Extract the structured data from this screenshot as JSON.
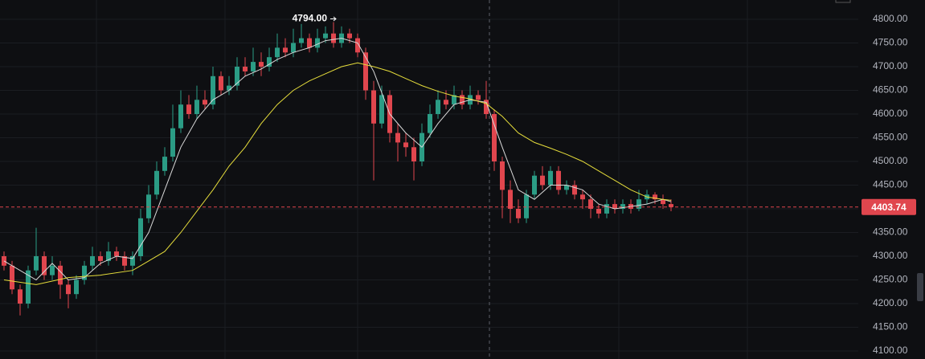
{
  "chart_data": {
    "type": "candlestick",
    "colors": {
      "up": "#2b9c85",
      "down": "#e0464e"
    },
    "ylim": [
      4100,
      4800
    ],
    "yticks": [
      {
        "value": 4100,
        "label": "4100.00"
      },
      {
        "value": 4150,
        "label": "4150.00"
      },
      {
        "value": 4200,
        "label": "4200.00"
      },
      {
        "value": 4250,
        "label": "4250.00"
      },
      {
        "value": 4300,
        "label": "4300.00"
      },
      {
        "value": 4350,
        "label": "4350.00"
      },
      {
        "value": 4400,
        "label": "4400.00"
      },
      {
        "value": 4450,
        "label": "4450.00"
      },
      {
        "value": 4500,
        "label": "4500.00"
      },
      {
        "value": 4550,
        "label": "4550.00"
      },
      {
        "value": 4600,
        "label": "4600.00"
      },
      {
        "value": 4650,
        "label": "4650.00"
      },
      {
        "value": 4700,
        "label": "4700.00"
      },
      {
        "value": 4750,
        "label": "4750.00"
      },
      {
        "value": 4800,
        "label": "4800.00"
      }
    ],
    "grid": true,
    "candles": [
      [
        4300,
        4310,
        4270,
        4280
      ],
      [
        4280,
        4290,
        4220,
        4230
      ],
      [
        4230,
        4240,
        4175,
        4200
      ],
      [
        4200,
        4280,
        4190,
        4270
      ],
      [
        4270,
        4360,
        4260,
        4300
      ],
      [
        4300,
        4310,
        4250,
        4260
      ],
      [
        4260,
        4300,
        4250,
        4280
      ],
      [
        4280,
        4290,
        4210,
        4240
      ],
      [
        4240,
        4250,
        4190,
        4220
      ],
      [
        4220,
        4260,
        4210,
        4250
      ],
      [
        4250,
        4290,
        4240,
        4280
      ],
      [
        4280,
        4320,
        4270,
        4300
      ],
      [
        4300,
        4310,
        4280,
        4290
      ],
      [
        4290,
        4330,
        4280,
        4310
      ],
      [
        4310,
        4320,
        4290,
        4300
      ],
      [
        4300,
        4310,
        4270,
        4280
      ],
      [
        4280,
        4310,
        4260,
        4300
      ],
      [
        4300,
        4400,
        4290,
        4380
      ],
      [
        4380,
        4450,
        4370,
        4430
      ],
      [
        4430,
        4500,
        4420,
        4480
      ],
      [
        4480,
        4530,
        4470,
        4510
      ],
      [
        4510,
        4620,
        4500,
        4570
      ],
      [
        4570,
        4650,
        4560,
        4620
      ],
      [
        4620,
        4640,
        4590,
        4600
      ],
      [
        4600,
        4660,
        4590,
        4630
      ],
      [
        4630,
        4650,
        4610,
        4620
      ],
      [
        4620,
        4700,
        4610,
        4680
      ],
      [
        4680,
        4690,
        4640,
        4650
      ],
      [
        4650,
        4680,
        4640,
        4660
      ],
      [
        4660,
        4720,
        4650,
        4700
      ],
      [
        4700,
        4720,
        4680,
        4690
      ],
      [
        4690,
        4740,
        4680,
        4710
      ],
      [
        4710,
        4730,
        4680,
        4700
      ],
      [
        4700,
        4740,
        4690,
        4720
      ],
      [
        4720,
        4770,
        4710,
        4740
      ],
      [
        4740,
        4760,
        4720,
        4730
      ],
      [
        4730,
        4780,
        4720,
        4750
      ],
      [
        4750,
        4790,
        4740,
        4760
      ],
      [
        4760,
        4770,
        4730,
        4740
      ],
      [
        4740,
        4780,
        4730,
        4760
      ],
      [
        4760,
        4785,
        4750,
        4770
      ],
      [
        4770,
        4794,
        4740,
        4750
      ],
      [
        4750,
        4785,
        4740,
        4770
      ],
      [
        4770,
        4780,
        4750,
        4760
      ],
      [
        4760,
        4770,
        4720,
        4730
      ],
      [
        4730,
        4740,
        4630,
        4650
      ],
      [
        4650,
        4670,
        4460,
        4580
      ],
      [
        4580,
        4660,
        4570,
        4640
      ],
      [
        4640,
        4650,
        4540,
        4560
      ],
      [
        4560,
        4580,
        4500,
        4540
      ],
      [
        4540,
        4560,
        4510,
        4530
      ],
      [
        4530,
        4550,
        4460,
        4500
      ],
      [
        4500,
        4580,
        4490,
        4560
      ],
      [
        4560,
        4620,
        4550,
        4600
      ],
      [
        4600,
        4650,
        4590,
        4630
      ],
      [
        4630,
        4650,
        4610,
        4620
      ],
      [
        4620,
        4660,
        4610,
        4640
      ],
      [
        4640,
        4650,
        4610,
        4620
      ],
      [
        4620,
        4660,
        4610,
        4640
      ],
      [
        4640,
        4650,
        4620,
        4630
      ],
      [
        4630,
        4670,
        4590,
        4600
      ],
      [
        4600,
        4610,
        4480,
        4500
      ],
      [
        4500,
        4510,
        4380,
        4440
      ],
      [
        4440,
        4460,
        4370,
        4400
      ],
      [
        4400,
        4420,
        4370,
        4380
      ],
      [
        4380,
        4440,
        4370,
        4430
      ],
      [
        4430,
        4480,
        4420,
        4470
      ],
      [
        4470,
        4490,
        4440,
        4450
      ],
      [
        4450,
        4490,
        4440,
        4480
      ],
      [
        4480,
        4490,
        4430,
        4440
      ],
      [
        4440,
        4460,
        4430,
        4450
      ],
      [
        4450,
        4460,
        4420,
        4430
      ],
      [
        4430,
        4440,
        4400,
        4420
      ],
      [
        4420,
        4430,
        4380,
        4400
      ],
      [
        4400,
        4410,
        4380,
        4390
      ],
      [
        4390,
        4420,
        4380,
        4410
      ],
      [
        4410,
        4420,
        4390,
        4400
      ],
      [
        4400,
        4420,
        4390,
        4410
      ],
      [
        4410,
        4420,
        4390,
        4400
      ],
      [
        4400,
        4440,
        4395,
        4420
      ],
      [
        4420,
        4440,
        4410,
        4430
      ],
      [
        4430,
        4435,
        4410,
        4420
      ],
      [
        4420,
        4430,
        4400,
        4410
      ],
      [
        4410,
        4420,
        4395,
        4403.74
      ]
    ],
    "lines": [
      {
        "color": "#d9d9d9",
        "x": [
          0,
          4,
          6,
          8,
          10,
          12,
          14,
          16,
          18,
          20,
          22,
          24,
          26,
          28,
          30,
          32,
          34,
          36,
          38,
          40,
          42,
          44,
          46,
          48,
          50,
          52,
          54,
          56,
          58,
          60,
          62,
          64,
          66,
          68,
          70,
          72,
          74,
          76,
          78,
          80,
          82,
          83
        ],
        "values": [
          4290,
          4250,
          4285,
          4250,
          4255,
          4285,
          4300,
          4295,
          4350,
          4440,
          4530,
          4590,
          4630,
          4650,
          4680,
          4695,
          4715,
          4730,
          4740,
          4755,
          4760,
          4750,
          4690,
          4600,
          4560,
          4530,
          4580,
          4620,
          4630,
          4625,
          4530,
          4440,
          4420,
          4450,
          4450,
          4440,
          4410,
          4400,
          4405,
          4410,
          4420,
          4415
        ]
      },
      {
        "color": "#e6dd3b",
        "x": [
          0,
          4,
          8,
          12,
          16,
          18,
          20,
          22,
          24,
          26,
          28,
          30,
          32,
          34,
          36,
          38,
          40,
          42,
          44,
          46,
          48,
          50,
          52,
          54,
          56,
          58,
          60,
          62,
          64,
          66,
          68,
          70,
          72,
          74,
          76,
          78,
          80,
          82,
          83
        ],
        "values": [
          4250,
          4240,
          4255,
          4260,
          4270,
          4290,
          4310,
          4350,
          4395,
          4440,
          4490,
          4530,
          4580,
          4620,
          4650,
          4670,
          4685,
          4700,
          4708,
          4700,
          4690,
          4675,
          4660,
          4648,
          4638,
          4632,
          4622,
          4595,
          4560,
          4540,
          4528,
          4515,
          4500,
          4480,
          4460,
          4440,
          4425,
          4420,
          4418
        ]
      }
    ],
    "high_marker": {
      "index": 41,
      "value": 4794,
      "label": "4794.00"
    },
    "last_price": {
      "value": 4403.74,
      "label": "4403.74",
      "color": "#e0464e"
    },
    "crosshair_index": 60.4
  }
}
